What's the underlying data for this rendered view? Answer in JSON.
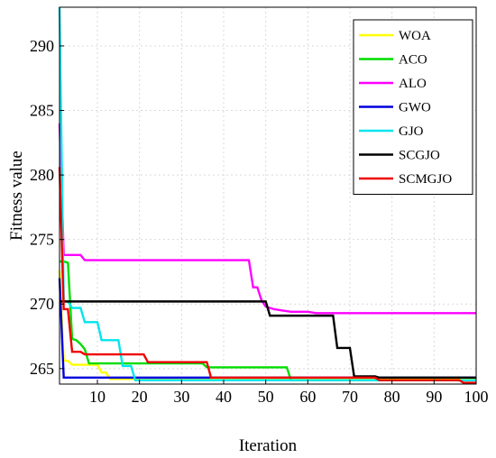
{
  "chart_data": {
    "type": "line",
    "xlabel": "Iteration",
    "ylabel": "Fitness value",
    "xlim": [
      1,
      100
    ],
    "ylim": [
      263.8,
      293
    ],
    "xticks": [
      10,
      20,
      30,
      40,
      50,
      60,
      70,
      80,
      90,
      100
    ],
    "yticks": [
      265,
      270,
      275,
      280,
      285,
      290
    ],
    "grid": true,
    "legend_position": "top-right",
    "series": [
      {
        "name": "WOA",
        "color": "#ffff00",
        "points": [
          [
            1,
            272.6
          ],
          [
            2,
            265.6
          ],
          [
            3,
            265.6
          ],
          [
            4,
            265.3
          ],
          [
            10,
            265.3
          ],
          [
            11,
            264.7
          ],
          [
            12,
            264.7
          ],
          [
            13,
            264.2
          ],
          [
            100,
            264.2
          ]
        ]
      },
      {
        "name": "ACO",
        "color": "#00dd00",
        "points": [
          [
            1,
            273.3
          ],
          [
            2,
            273.3
          ],
          [
            3,
            273.2
          ],
          [
            4,
            267.3
          ],
          [
            5,
            267.2
          ],
          [
            6,
            266.9
          ],
          [
            7,
            266.5
          ],
          [
            8,
            265.4
          ],
          [
            35,
            265.4
          ],
          [
            36,
            265.1
          ],
          [
            55,
            265.1
          ],
          [
            56,
            264.1
          ],
          [
            100,
            264.1
          ]
        ]
      },
      {
        "name": "ALO",
        "color": "#ff00ff",
        "points": [
          [
            1,
            284.0
          ],
          [
            2,
            273.8
          ],
          [
            6,
            273.8
          ],
          [
            7,
            273.4
          ],
          [
            46,
            273.4
          ],
          [
            47,
            271.3
          ],
          [
            48,
            271.3
          ],
          [
            49,
            270.3
          ],
          [
            50,
            269.8
          ],
          [
            52,
            269.6
          ],
          [
            54,
            269.5
          ],
          [
            56,
            269.4
          ],
          [
            60,
            269.4
          ],
          [
            62,
            269.3
          ],
          [
            100,
            269.3
          ]
        ]
      },
      {
        "name": "GWO",
        "color": "#0000dd",
        "points": [
          [
            1,
            272.0
          ],
          [
            2,
            264.3
          ],
          [
            100,
            264.3
          ]
        ]
      },
      {
        "name": "GJO",
        "color": "#00e5ee",
        "points": [
          [
            1,
            293.0
          ],
          [
            2,
            270.2
          ],
          [
            3,
            270.2
          ],
          [
            4,
            269.7
          ],
          [
            6,
            269.7
          ],
          [
            7,
            268.6
          ],
          [
            10,
            268.6
          ],
          [
            11,
            267.2
          ],
          [
            15,
            267.2
          ],
          [
            16,
            265.2
          ],
          [
            18,
            265.2
          ],
          [
            19,
            264.1
          ],
          [
            100,
            264.1
          ]
        ]
      },
      {
        "name": "SCGJO",
        "color": "#000000",
        "points": [
          [
            1,
            270.2
          ],
          [
            50,
            270.2
          ],
          [
            51,
            269.1
          ],
          [
            66,
            269.1
          ],
          [
            67,
            266.6
          ],
          [
            70,
            266.6
          ],
          [
            71,
            264.4
          ],
          [
            76,
            264.4
          ],
          [
            77,
            264.3
          ],
          [
            100,
            264.3
          ]
        ]
      },
      {
        "name": "SCMGJO",
        "color": "#ee0000",
        "points": [
          [
            1,
            280.6
          ],
          [
            2,
            269.6
          ],
          [
            3,
            269.6
          ],
          [
            4,
            266.3
          ],
          [
            6,
            266.3
          ],
          [
            7,
            266.1
          ],
          [
            21,
            266.1
          ],
          [
            22,
            265.5
          ],
          [
            36,
            265.5
          ],
          [
            37,
            264.3
          ],
          [
            76,
            264.3
          ],
          [
            77,
            264.1
          ],
          [
            96,
            264.1
          ],
          [
            97,
            263.9
          ],
          [
            100,
            263.9
          ]
        ]
      }
    ]
  }
}
